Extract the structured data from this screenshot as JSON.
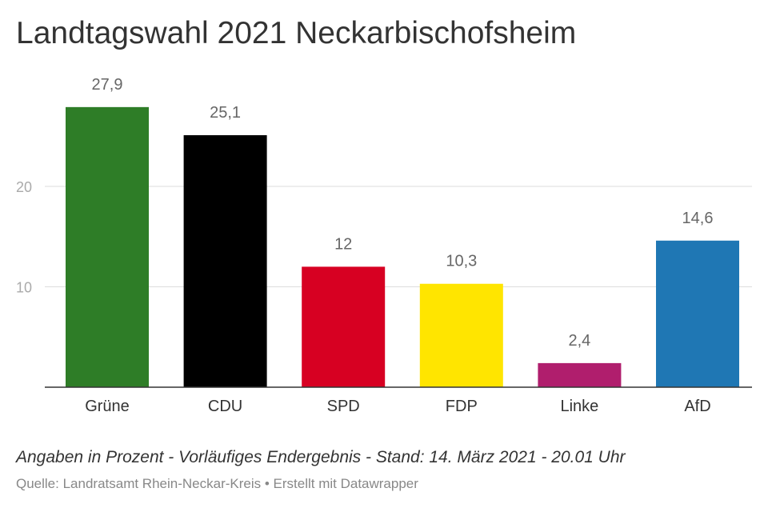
{
  "chart_data": {
    "type": "bar",
    "title": "Landtagswahl 2021 Neckarbischofsheim",
    "categories": [
      "Grüne",
      "CDU",
      "SPD",
      "FDP",
      "Linke",
      "AfD"
    ],
    "values": [
      27.9,
      25.1,
      12,
      10.3,
      2.4,
      14.6
    ],
    "value_labels": [
      "27,9",
      "25,1",
      "12",
      "10,3",
      "2,4",
      "14,6"
    ],
    "colors": [
      "#2e7d27",
      "#000000",
      "#d70022",
      "#ffe500",
      "#b01e6d",
      "#1f77b4"
    ],
    "yticks": [
      10,
      20
    ],
    "ylim": [
      0,
      30
    ],
    "grid": true,
    "legend": "none"
  },
  "notes": "Angaben in Prozent - Vorläufiges Endergebnis - Stand: 14. März 2021 - 20.01 Uhr",
  "source": "Quelle: Landratsamt Rhein-Neckar-Kreis • Erstellt mit Datawrapper"
}
